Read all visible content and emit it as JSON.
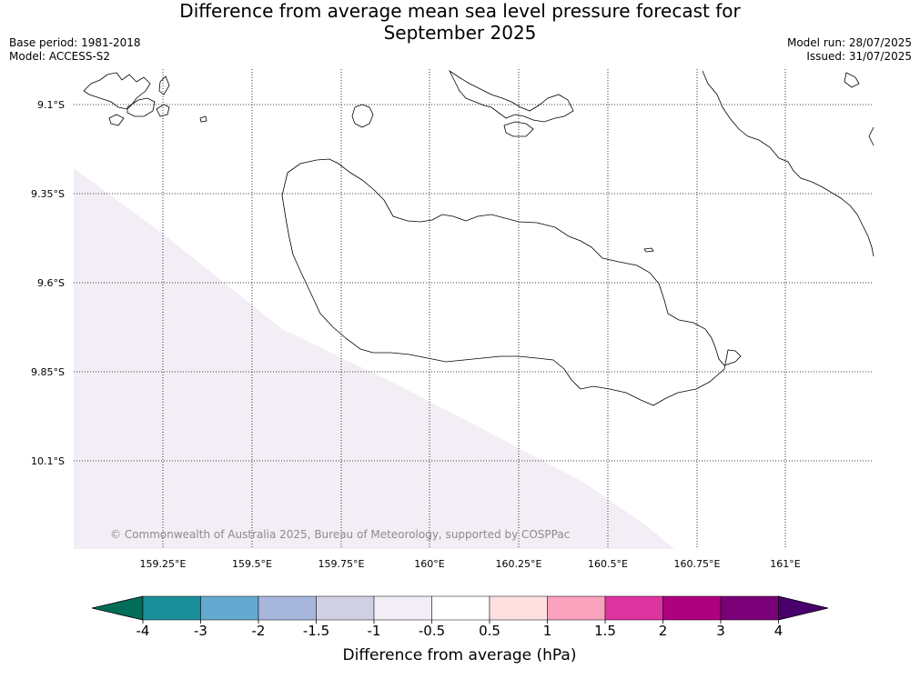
{
  "title": {
    "line1": "Difference from average mean sea level pressure forecast for",
    "line2": "September 2025"
  },
  "meta": {
    "base_period": "Base period: 1981-2018",
    "model": "Model: ACCESS-S2",
    "model_run": "Model run: 28/07/2025",
    "issued": "Issued: 31/07/2025"
  },
  "map": {
    "lon_ticks": [
      "159.25°E",
      "159.5°E",
      "159.75°E",
      "160°E",
      "160.25°E",
      "160.5°E",
      "160.75°E",
      "161°E"
    ],
    "lat_ticks": [
      "9.1°S",
      "9.35°S",
      "9.6°S",
      "9.85°S",
      "10.1°S"
    ],
    "grid": "dotted",
    "copyright": "© Commonwealth of Australia 2025, Bureau of Meteorology, supported by COSPPac",
    "shaded_region_color": "#f3edf6"
  },
  "colorbar": {
    "label": "Difference from average (hPa)",
    "ticks": [
      "-4",
      "-3",
      "-2",
      "-1.5",
      "-1",
      "-0.5",
      "0.5",
      "1",
      "1.5",
      "2",
      "3",
      "4"
    ],
    "colors": [
      "#1b8f99",
      "#65a9d1",
      "#a7b7dc",
      "#d0d0e5",
      "#f3edf6",
      "#ffffff",
      "#fee0e0",
      "#f9a1bd",
      "#dd34a0",
      "#ae017e",
      "#7a0177"
    ],
    "under_color": "#016c59",
    "over_color": "#49006a"
  }
}
